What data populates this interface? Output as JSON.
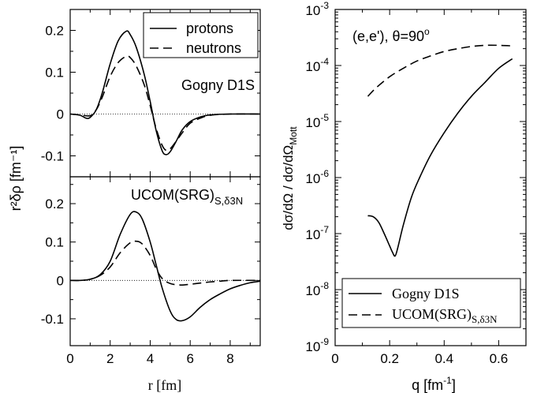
{
  "chart_data": [
    {
      "type": "line",
      "panel": "left-top",
      "xlim": [
        0,
        9.5
      ],
      "ylim": [
        -0.15,
        0.25
      ],
      "yticks": [
        -0.1,
        0,
        0.1,
        0.2
      ],
      "ytick_labels": [
        "-0.1",
        "0",
        "0.1",
        "0.2"
      ],
      "xticks": [
        0,
        2,
        4,
        6,
        8
      ],
      "annotation": "Gogny D1S",
      "legend_position": "top-right",
      "series": [
        {
          "name": "protons",
          "style": "solid",
          "x": [
            0,
            0.5,
            0.8,
            1.0,
            1.3,
            1.6,
            2.0,
            2.4,
            2.8,
            3.0,
            3.3,
            3.7,
            4.0,
            4.3,
            4.6,
            4.8,
            5.0,
            5.3,
            5.6,
            6.0,
            6.5,
            7.0,
            8.0,
            9.5
          ],
          "y": [
            0,
            -0.003,
            -0.01,
            -0.008,
            0.01,
            0.05,
            0.12,
            0.175,
            0.198,
            0.19,
            0.16,
            0.095,
            0.03,
            -0.04,
            -0.088,
            -0.097,
            -0.09,
            -0.065,
            -0.038,
            -0.018,
            -0.007,
            -0.002,
            0,
            0
          ]
        },
        {
          "name": "neutrons",
          "style": "dashed",
          "x": [
            0,
            0.5,
            1.0,
            1.3,
            1.6,
            2.0,
            2.4,
            2.8,
            3.0,
            3.3,
            3.7,
            4.0,
            4.3,
            4.6,
            4.8,
            5.0,
            5.3,
            5.6,
            6.0,
            6.5,
            7.0,
            8.0,
            9.5
          ],
          "y": [
            0,
            -0.002,
            -0.004,
            0.01,
            0.04,
            0.09,
            0.123,
            0.138,
            0.135,
            0.115,
            0.07,
            0.02,
            -0.035,
            -0.075,
            -0.087,
            -0.083,
            -0.065,
            -0.045,
            -0.022,
            -0.01,
            -0.003,
            0,
            0
          ]
        }
      ]
    },
    {
      "type": "line",
      "panel": "left-bottom",
      "xlim": [
        0,
        9.5
      ],
      "ylim": [
        -0.17,
        0.27
      ],
      "yticks": [
        -0.1,
        0,
        0.1,
        0.2
      ],
      "ytick_labels": [
        "-0.1",
        "0",
        "0.1",
        "0.2"
      ],
      "xticks": [
        0,
        2,
        4,
        6,
        8
      ],
      "xtick_labels": [
        "0",
        "2",
        "4",
        "6",
        "8"
      ],
      "xlabel": "r [fm]",
      "ylabel": "r²δρ [fm⁻¹]",
      "annotation": "UCOM(SRG)",
      "annotation_subscript": "S,δ3N",
      "series": [
        {
          "name": "protons",
          "style": "solid",
          "x": [
            0,
            0.5,
            1.0,
            1.5,
            2.0,
            2.5,
            3.0,
            3.3,
            3.6,
            4.0,
            4.3,
            4.6,
            5.0,
            5.3,
            5.6,
            6.0,
            6.5,
            7.0,
            7.5,
            8.0,
            8.5,
            9.0,
            9.5
          ],
          "y": [
            0,
            0,
            0.003,
            0.015,
            0.05,
            0.12,
            0.172,
            0.178,
            0.16,
            0.1,
            0.04,
            -0.02,
            -0.08,
            -0.102,
            -0.105,
            -0.095,
            -0.07,
            -0.05,
            -0.035,
            -0.022,
            -0.013,
            -0.006,
            -0.002
          ]
        },
        {
          "name": "neutrons",
          "style": "dashed",
          "x": [
            0,
            0.5,
            1.0,
            1.5,
            2.0,
            2.5,
            3.0,
            3.3,
            3.6,
            4.0,
            4.3,
            4.6,
            5.0,
            5.5,
            6.0,
            6.5,
            7.0,
            7.5,
            8.0,
            9.5
          ],
          "y": [
            0,
            0,
            0.003,
            0.013,
            0.035,
            0.072,
            0.098,
            0.102,
            0.095,
            0.065,
            0.03,
            0.005,
            -0.008,
            -0.012,
            -0.01,
            -0.007,
            -0.004,
            -0.002,
            0,
            0
          ]
        }
      ]
    },
    {
      "type": "line",
      "panel": "right",
      "xlim": [
        0,
        0.7
      ],
      "ylim_log10": [
        -9,
        -3
      ],
      "log_y": true,
      "xticks": [
        0,
        0.2,
        0.4,
        0.6
      ],
      "xtick_labels": [
        "0",
        "0.2",
        "0.4",
        "0.6"
      ],
      "ytick_exponents": [
        -9,
        -8,
        -7,
        -6,
        -5,
        -4,
        -3
      ],
      "ytick_base": "10",
      "xlabel": "q [fm",
      "xlabel_sup": "-1",
      "xlabel_end": "]",
      "ylabel": "dσ/dΩ / dσ/dΩ",
      "ylabel_sub": "Mott",
      "annotation": "(e,e'), θ=90",
      "annotation_sup": "o",
      "legend_position": "bottom-left",
      "series": [
        {
          "name": "Gogny D1S",
          "style": "solid",
          "x": [
            0.12,
            0.14,
            0.16,
            0.18,
            0.2,
            0.21,
            0.22,
            0.23,
            0.25,
            0.28,
            0.31,
            0.35,
            0.4,
            0.45,
            0.5,
            0.55,
            0.6,
            0.65
          ],
          "y_log10": [
            -6.68,
            -6.7,
            -6.8,
            -7.0,
            -7.22,
            -7.33,
            -7.4,
            -7.25,
            -6.85,
            -6.35,
            -6.0,
            -5.6,
            -5.2,
            -4.85,
            -4.55,
            -4.3,
            -4.05,
            -3.88
          ]
        },
        {
          "name": "UCOM(SRG)",
          "name_sub": "S,δ3N",
          "style": "dashed",
          "x": [
            0.12,
            0.15,
            0.2,
            0.25,
            0.3,
            0.35,
            0.4,
            0.45,
            0.5,
            0.55,
            0.6,
            0.65
          ],
          "y_log10": [
            -4.55,
            -4.4,
            -4.2,
            -4.05,
            -3.92,
            -3.83,
            -3.75,
            -3.7,
            -3.66,
            -3.64,
            -3.64,
            -3.65
          ]
        }
      ]
    }
  ]
}
